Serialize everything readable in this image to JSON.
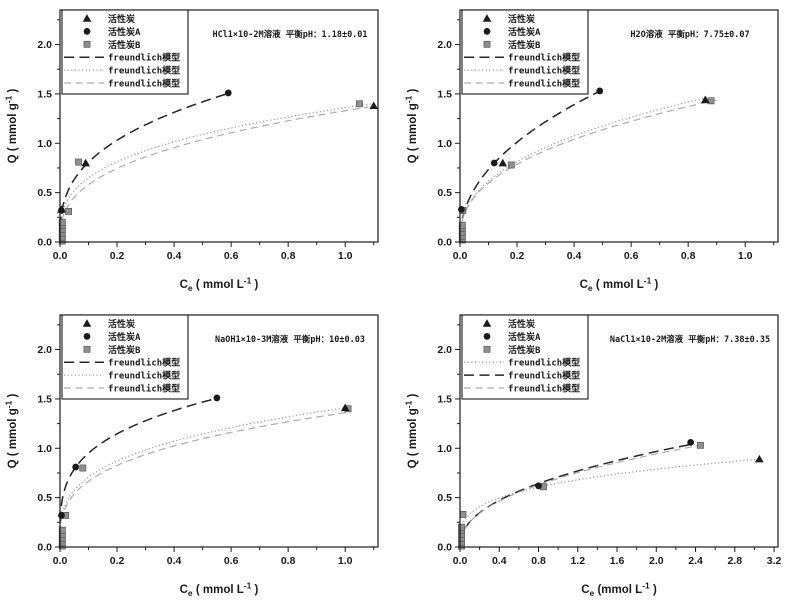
{
  "figure": {
    "bg": "#ffffff",
    "ink": "#1a1a1a",
    "gray": "#8f8f8f",
    "square_edge": "#4e4e4e",
    "line_styles": {
      "dash-dark": {
        "stroke": "#242424",
        "dash": "10 5.5",
        "width": 1.5
      },
      "dotted": {
        "stroke": "#9b9b9b",
        "dash": "1.2 2.4",
        "width": 1.3
      },
      "dash-gray": {
        "stroke": "#ababab",
        "dash": "7 4.5",
        "width": 1.2
      }
    }
  },
  "chart_data": [
    {
      "type": "scatter",
      "annotation": "HCl1×10-2M溶液  平衡pH：1.18±0.01",
      "xlabel_parts": [
        {
          "t": "C"
        },
        {
          "t": "e",
          "shift": "sub"
        },
        {
          "t": " ( mmol L"
        },
        {
          "t": "-1",
          "shift": "sup"
        },
        {
          "t": " )"
        }
      ],
      "ylabel_parts": [
        {
          "t": "Q ( mmol g"
        },
        {
          "t": "-1",
          "shift": "sup"
        },
        {
          "t": " )"
        }
      ],
      "x_axis": {
        "tick_labels": [
          "0.0",
          "0.2",
          "0.4",
          "0.6",
          "0.8",
          "1.0"
        ],
        "tick_values": [
          0,
          0.2,
          0.4,
          0.6,
          0.8,
          1.0
        ],
        "minor_step": 0.1,
        "max": 1.115
      },
      "y_axis": {
        "tick_labels": [
          "0.0",
          "0.5",
          "1.0",
          "1.5",
          "2.0"
        ],
        "tick_values": [
          0,
          0.5,
          1.0,
          1.5,
          2.0
        ],
        "minor_step": 0.25,
        "max": 2.35
      },
      "legend": [
        {
          "kind": "marker",
          "marker": "triangle",
          "label": "活性炭"
        },
        {
          "kind": "marker",
          "marker": "circle",
          "label": "活性炭A"
        },
        {
          "kind": "marker",
          "marker": "square",
          "label": "活性炭B"
        },
        {
          "kind": "line",
          "style": "dash-dark",
          "label": "freundlich模型"
        },
        {
          "kind": "line",
          "style": "dotted",
          "label": "freundlich模型"
        },
        {
          "kind": "line",
          "style": "dash-gray",
          "label": "freundlich模型"
        }
      ],
      "series": [
        {
          "name": "活性炭",
          "marker": "triangle",
          "points": [
            [
              0.005,
              0.33
            ],
            [
              0.09,
              0.8
            ],
            [
              1.1,
              1.38
            ]
          ]
        },
        {
          "name": "活性炭A",
          "marker": "circle",
          "points": [
            [
              0.005,
              0.32
            ],
            [
              0.59,
              1.51
            ]
          ]
        },
        {
          "name": "活性炭B",
          "marker": "square",
          "points": [
            [
              0.008,
              0.01
            ],
            [
              0.008,
              0.05
            ],
            [
              0.008,
              0.09
            ],
            [
              0.008,
              0.13
            ],
            [
              0.008,
              0.17
            ],
            [
              0.008,
              0.2
            ],
            [
              0.03,
              0.31
            ],
            [
              0.065,
              0.81
            ],
            [
              1.05,
              1.4
            ]
          ]
        }
      ],
      "fits": [
        {
          "label": "freundlich模型",
          "style": "dash-dark",
          "k": 1.81,
          "n": 0.35,
          "x_range": [
            0.0008,
            0.59
          ]
        },
        {
          "label": "freundlich模型",
          "style": "dotted",
          "k": 1.36,
          "n": 0.32,
          "x_range": [
            0.0008,
            1.11
          ]
        },
        {
          "label": "freundlich模型",
          "style": "dash-gray",
          "k": 1.33,
          "n": 0.36,
          "x_range": [
            0.0008,
            1.08
          ]
        }
      ]
    },
    {
      "type": "scatter",
      "annotation": "H2O溶液  平衡pH：7.75±0.07",
      "xlabel_parts": [
        {
          "t": "C"
        },
        {
          "t": "e",
          "shift": "sub"
        },
        {
          "t": " ( mmol L"
        },
        {
          "t": "-1",
          "shift": "sup"
        },
        {
          "t": " )"
        }
      ],
      "ylabel_parts": [
        {
          "t": "Q ( mmol g"
        },
        {
          "t": "-1",
          "shift": "sup"
        },
        {
          "t": " )"
        }
      ],
      "x_axis": {
        "tick_labels": [
          "0.0",
          "0.2",
          "0.4",
          "0.6",
          "0.8",
          "1.0"
        ],
        "tick_values": [
          0,
          0.2,
          0.4,
          0.6,
          0.8,
          1.0
        ],
        "minor_step": 0.1,
        "max": 1.115
      },
      "y_axis": {
        "tick_labels": [
          "0.0",
          "0.5",
          "1.0",
          "1.5",
          "2.0"
        ],
        "tick_values": [
          0,
          0.5,
          1.0,
          1.5,
          2.0
        ],
        "minor_step": 0.25,
        "max": 2.35
      },
      "legend": [
        {
          "kind": "marker",
          "marker": "triangle",
          "label": "活性炭"
        },
        {
          "kind": "marker",
          "marker": "circle",
          "label": "活性炭A"
        },
        {
          "kind": "marker",
          "marker": "square",
          "label": "活性炭B"
        },
        {
          "kind": "line",
          "style": "dash-dark",
          "label": "freundlich模型"
        },
        {
          "kind": "line",
          "style": "dotted",
          "label": "freundlich模型"
        },
        {
          "kind": "line",
          "style": "dash-gray",
          "label": "freundlich模型"
        }
      ],
      "series": [
        {
          "name": "活性炭",
          "marker": "triangle",
          "points": [
            [
              0.15,
              0.8
            ],
            [
              0.86,
              1.44
            ]
          ]
        },
        {
          "name": "活性炭A",
          "marker": "circle",
          "points": [
            [
              0.005,
              0.33
            ],
            [
              0.12,
              0.8
            ],
            [
              0.49,
              1.53
            ]
          ]
        },
        {
          "name": "活性炭B",
          "marker": "square",
          "points": [
            [
              0.008,
              0.02
            ],
            [
              0.008,
              0.06
            ],
            [
              0.008,
              0.1
            ],
            [
              0.008,
              0.14
            ],
            [
              0.008,
              0.17
            ],
            [
              0.01,
              0.32
            ],
            [
              0.18,
              0.78
            ],
            [
              0.88,
              1.43
            ]
          ]
        }
      ],
      "fits": [
        {
          "label": "freundlich模型",
          "style": "dash-dark",
          "k": 2.12,
          "n": 0.46,
          "x_range": [
            0.0008,
            0.49
          ]
        },
        {
          "label": "freundlich模型",
          "style": "dotted",
          "k": 1.55,
          "n": 0.4,
          "x_range": [
            0.0008,
            0.87
          ]
        },
        {
          "label": "freundlich模型",
          "style": "dash-gray",
          "k": 1.5,
          "n": 0.4,
          "x_range": [
            0.0008,
            0.9
          ]
        }
      ]
    },
    {
      "type": "scatter",
      "annotation": "NaOH1×10-3M溶液  平衡pH：10±0.03",
      "xlabel_parts": [
        {
          "t": "C"
        },
        {
          "t": "e",
          "shift": "sub"
        },
        {
          "t": " ( mmol L"
        },
        {
          "t": "-1",
          "shift": "sup"
        },
        {
          "t": " )"
        }
      ],
      "ylabel_parts": [
        {
          "t": "Q ( mmol g"
        },
        {
          "t": "-1",
          "shift": "sup"
        },
        {
          "t": " )"
        }
      ],
      "x_axis": {
        "tick_labels": [
          "0.0",
          "0.2",
          "0.4",
          "0.6",
          "0.8",
          "1.0"
        ],
        "tick_values": [
          0,
          0.2,
          0.4,
          0.6,
          0.8,
          1.0
        ],
        "minor_step": 0.1,
        "max": 1.115
      },
      "y_axis": {
        "tick_labels": [
          "0.0",
          "0.5",
          "1.0",
          "1.5",
          "2.0"
        ],
        "tick_values": [
          0,
          0.5,
          1.0,
          1.5,
          2.0
        ],
        "minor_step": 0.25,
        "max": 2.35
      },
      "legend": [
        {
          "kind": "marker",
          "marker": "triangle",
          "label": "活性炭"
        },
        {
          "kind": "marker",
          "marker": "circle",
          "label": "活性炭A"
        },
        {
          "kind": "marker",
          "marker": "square",
          "label": "活性炭B"
        },
        {
          "kind": "line",
          "style": "dash-dark",
          "label": "freundlich模型"
        },
        {
          "kind": "line",
          "style": "dotted",
          "label": "freundlich模型"
        },
        {
          "kind": "line",
          "style": "dash-gray",
          "label": "freundlich模型"
        }
      ],
      "series": [
        {
          "name": "活性炭",
          "marker": "triangle",
          "points": [
            [
              1.0,
              1.41
            ]
          ]
        },
        {
          "name": "活性炭A",
          "marker": "circle",
          "points": [
            [
              0.005,
              0.32
            ],
            [
              0.055,
              0.81
            ],
            [
              0.55,
              1.51
            ]
          ]
        },
        {
          "name": "活性炭B",
          "marker": "square",
          "points": [
            [
              0.008,
              0.01
            ],
            [
              0.008,
              0.05
            ],
            [
              0.008,
              0.09
            ],
            [
              0.008,
              0.13
            ],
            [
              0.008,
              0.17
            ],
            [
              0.02,
              0.32
            ],
            [
              0.08,
              0.8
            ],
            [
              1.01,
              1.4
            ]
          ]
        }
      ],
      "fits": [
        {
          "label": "freundlich模型",
          "style": "dash-dark",
          "k": 1.77,
          "n": 0.27,
          "x_range": [
            0.0008,
            0.55
          ]
        },
        {
          "label": "freundlich模型",
          "style": "dotted",
          "k": 1.41,
          "n": 0.3,
          "x_range": [
            0.0008,
            1.02
          ]
        },
        {
          "label": "freundlich模型",
          "style": "dash-gray",
          "k": 1.36,
          "n": 0.31,
          "x_range": [
            0.0008,
            1.02
          ]
        }
      ]
    },
    {
      "type": "scatter",
      "annotation": "NaCl1×10-2M溶液  平衡pH：7.38±0.35",
      "xlabel_parts": [
        {
          "t": "C"
        },
        {
          "t": "e",
          "shift": "sub"
        },
        {
          "t": " (mmol L"
        },
        {
          "t": "-1",
          "shift": "sup"
        },
        {
          "t": " )"
        }
      ],
      "ylabel_parts": [
        {
          "t": "Q ( mmol g"
        },
        {
          "t": "-1",
          "shift": "sup"
        },
        {
          "t": " )"
        }
      ],
      "x_axis": {
        "tick_labels": [
          "0.0",
          "0.4",
          "0.8",
          "1.2",
          "1.6",
          "2.0",
          "2.4",
          "2.8",
          "3.2"
        ],
        "tick_values": [
          0,
          0.4,
          0.8,
          1.2,
          1.6,
          2.0,
          2.4,
          2.8,
          3.2
        ],
        "minor_step": 0.2,
        "max": 3.24
      },
      "y_axis": {
        "tick_labels": [
          "0.0",
          "0.5",
          "1.0",
          "1.5",
          "2.0"
        ],
        "tick_values": [
          0,
          0.5,
          1.0,
          1.5,
          2.0
        ],
        "minor_step": 0.25,
        "max": 2.35
      },
      "legend": [
        {
          "kind": "marker",
          "marker": "triangle",
          "label": "活性炭"
        },
        {
          "kind": "marker",
          "marker": "circle",
          "label": "活性炭A"
        },
        {
          "kind": "marker",
          "marker": "square",
          "label": "活性炭B"
        },
        {
          "kind": "line",
          "style": "dotted",
          "label": "freundlich模型"
        },
        {
          "kind": "line",
          "style": "dash-dark",
          "label": "freundlich模型"
        },
        {
          "kind": "line",
          "style": "dash-gray",
          "label": "freundlich模型"
        }
      ],
      "series": [
        {
          "name": "活性炭",
          "marker": "triangle",
          "points": [
            [
              3.05,
              0.89
            ]
          ]
        },
        {
          "name": "活性炭A",
          "marker": "circle",
          "points": [
            [
              0.8,
              0.62
            ],
            [
              2.35,
              1.06
            ]
          ]
        },
        {
          "name": "活性炭B",
          "marker": "square",
          "points": [
            [
              0.015,
              0.01
            ],
            [
              0.015,
              0.05
            ],
            [
              0.015,
              0.09
            ],
            [
              0.015,
              0.13
            ],
            [
              0.015,
              0.17
            ],
            [
              0.015,
              0.2
            ],
            [
              0.03,
              0.33
            ],
            [
              0.85,
              0.61
            ],
            [
              2.45,
              1.03
            ]
          ]
        }
      ],
      "fits": [
        {
          "label": "freundlich模型",
          "style": "dotted",
          "k": 0.646,
          "n": 0.287,
          "x_range": [
            0.002,
            3.05
          ]
        },
        {
          "label": "freundlich模型",
          "style": "dash-dark",
          "k": 0.71,
          "n": 0.446,
          "x_range": [
            0.002,
            2.38
          ]
        },
        {
          "label": "freundlich模型",
          "style": "dash-gray",
          "k": 0.695,
          "n": 0.44,
          "x_range": [
            0.002,
            2.46
          ]
        }
      ]
    }
  ]
}
